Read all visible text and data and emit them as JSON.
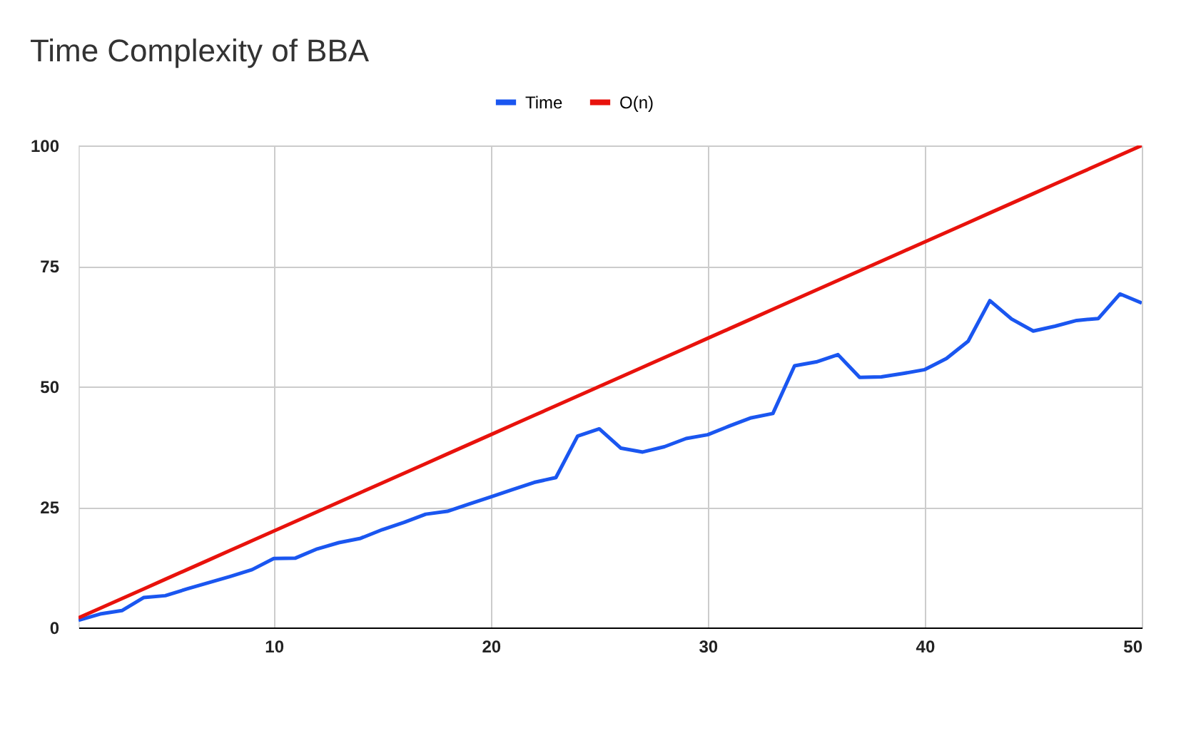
{
  "chart_data": {
    "type": "line",
    "title": "Time Complexity of BBA",
    "x": [
      1,
      2,
      3,
      4,
      5,
      6,
      7,
      8,
      9,
      10,
      11,
      12,
      13,
      14,
      15,
      16,
      17,
      18,
      19,
      20,
      21,
      22,
      23,
      24,
      25,
      26,
      27,
      28,
      29,
      30,
      31,
      32,
      33,
      34,
      35,
      36,
      37,
      38,
      39,
      40,
      41,
      42,
      43,
      44,
      45,
      46,
      47,
      48,
      49,
      50
    ],
    "series": [
      {
        "name": "Time",
        "color": "#1a56f0",
        "values": [
          1.5,
          2.8,
          3.5,
          6.2,
          6.6,
          8,
          9.3,
          10.6,
          12,
          14.3,
          14.4,
          16.3,
          17.6,
          18.5,
          20.3,
          21.8,
          23.5,
          24.1,
          25.6,
          27.1,
          28.6,
          30.1,
          31.1,
          39.7,
          41.2,
          37.2,
          36.4,
          37.5,
          39.2,
          40,
          41.8,
          43.5,
          44.4,
          54.3,
          55.1,
          56.6,
          51.9,
          52,
          52.7,
          53.5,
          55.8,
          59.4,
          67.8,
          64,
          61.5,
          62.5,
          63.7,
          64.1,
          69.2,
          67.3
        ]
      },
      {
        "name": "O(n)",
        "color": "#e8120c",
        "values": [
          2,
          4,
          6,
          8,
          10,
          12,
          14,
          16,
          18,
          20,
          22,
          24,
          26,
          28,
          30,
          32,
          34,
          36,
          38,
          40,
          42,
          44,
          46,
          48,
          50,
          52,
          54,
          56,
          58,
          60,
          62,
          64,
          66,
          68,
          70,
          72,
          74,
          76,
          78,
          80,
          82,
          84,
          86,
          88,
          90,
          92,
          94,
          96,
          98,
          100
        ]
      }
    ],
    "xlim": [
      1,
      50
    ],
    "xticks": [
      10,
      20,
      30,
      40,
      50
    ],
    "ylim": [
      0,
      100
    ],
    "yticks": [
      0,
      25,
      50,
      75,
      100
    ],
    "grid": true,
    "legend": "top",
    "line_style": "solid",
    "marker": "none"
  }
}
